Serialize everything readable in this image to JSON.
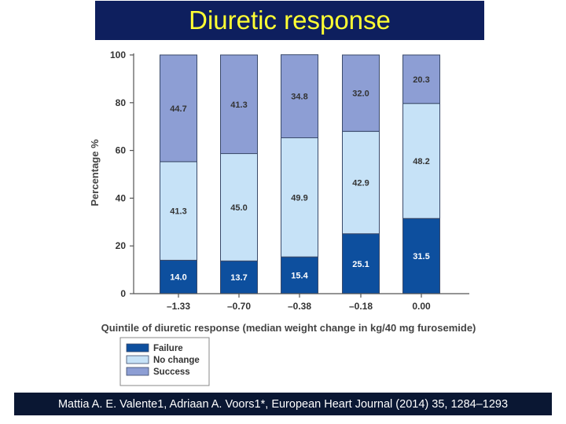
{
  "slide": {
    "title": "Diuretic response",
    "citation": "Mattia A. E. Valente1, Adriaan A. Voors1*, European Heart Journal (2014) 35, 1284–1293"
  },
  "colors": {
    "title_bg": "#0e1f5e",
    "title_text": "#ffff33",
    "footer_bg": "#0a1733",
    "failure": "#0d4f9e",
    "no_change": "#c6e2f7",
    "success": "#8d9ed4"
  },
  "chart_data": {
    "type": "bar",
    "stacked": true,
    "categories": [
      "–1.33",
      "–0.70",
      "–0.38",
      "–0.18",
      "0.00"
    ],
    "series": [
      {
        "name": "Failure",
        "values": [
          14.0,
          13.7,
          15.4,
          25.1,
          31.5
        ]
      },
      {
        "name": "No change",
        "values": [
          41.3,
          45.0,
          49.9,
          42.9,
          48.2
        ]
      },
      {
        "name": "Success",
        "values": [
          44.7,
          41.3,
          34.8,
          32.0,
          20.3
        ]
      }
    ],
    "value_labels": [
      [
        "14.0",
        "13.7",
        "15.4",
        "25.1",
        "31.5"
      ],
      [
        "41.3",
        "45.0",
        "49.9",
        "42.9",
        "48.2"
      ],
      [
        "44.7",
        "41.3",
        "34.8",
        "32.0",
        "20.3"
      ]
    ],
    "xlabel": "Quintile of diuretic response (median weight change in kg/40 mg furosemide)",
    "ylabel": "Percentage %",
    "ylim": [
      0,
      100
    ],
    "yticks": [
      "0",
      "20",
      "40",
      "60",
      "80",
      "100"
    ],
    "grid": false,
    "legend_position": "bottom-left"
  }
}
